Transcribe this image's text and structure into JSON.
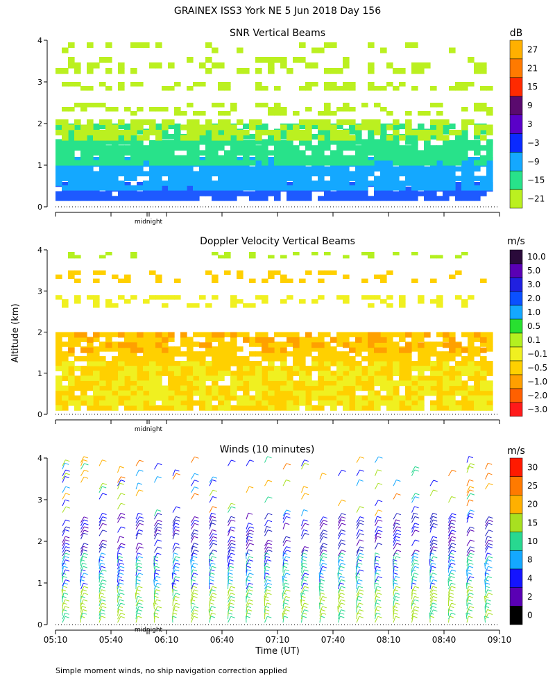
{
  "figure": {
    "title": "GRAINEX ISS3 York NE    5 Jun 2018 Day 156",
    "ylabel": "Altitude (km)",
    "xlabel": "Time (UT)",
    "midnight_label": "midnight",
    "footnote": "Simple moment winds, no ship navigation correction applied"
  },
  "chart_data": [
    {
      "type": "heatmap",
      "title": "SNR Vertical Beams",
      "xlabel": "",
      "ylabel": "Altitude (km)",
      "x_start": "05:10",
      "x_end": "09:10",
      "ylim": [
        0,
        4
      ],
      "yticks": [
        0,
        1,
        2,
        3,
        4
      ],
      "colorbar_unit": "dB",
      "colorbar_labels": [
        "27",
        "21",
        "15",
        "9",
        "3",
        "−3",
        "−9",
        "−15",
        "−21"
      ],
      "colorbar_colors": [
        "#ffb000",
        "#ff7a00",
        "#ff2a00",
        "#5a0a6e",
        "#5a00c8",
        "#0a2aff",
        "#14a8ff",
        "#28e28a",
        "#bbf020"
      ],
      "bands": [
        {
          "alt": [
            0.15,
            0.6
          ],
          "color": "#1e5aff",
          "coverage": 0.9
        },
        {
          "alt": [
            0.4,
            1.2
          ],
          "color": "#14a8ff",
          "coverage": 0.9
        },
        {
          "alt": [
            1.0,
            1.6
          ],
          "color": "#28e28a",
          "coverage": 0.85
        },
        {
          "alt": [
            1.5,
            2.0
          ],
          "color": "#28e28a",
          "coverage": 0.75
        },
        {
          "alt": [
            1.6,
            2.1
          ],
          "color": "#bbf020",
          "coverage": 0.6
        },
        {
          "alt": [
            2.2,
            2.5
          ],
          "color": "#bbf020",
          "coverage": 0.35
        },
        {
          "alt": [
            2.8,
            3.0
          ],
          "color": "#bbf020",
          "coverage": 0.35
        },
        {
          "alt": [
            3.2,
            3.6
          ],
          "color": "#bbf020",
          "coverage": 0.25
        },
        {
          "alt": [
            3.7,
            3.95
          ],
          "color": "#bbf020",
          "coverage": 0.2
        }
      ]
    },
    {
      "type": "heatmap",
      "title": "Doppler Velocity Vertical Beams",
      "xlabel": "",
      "ylabel": "Altitude (km)",
      "x_start": "05:10",
      "x_end": "09:10",
      "ylim": [
        0,
        4
      ],
      "yticks": [
        0,
        1,
        2,
        3,
        4
      ],
      "colorbar_unit": "m/s",
      "colorbar_labels": [
        "10.0",
        "5.0",
        "3.0",
        "2.0",
        "1.0",
        "0.5",
        "0.1",
        "−0.1",
        "−0.5",
        "−1.0",
        "−2.0",
        "−3.0"
      ],
      "colorbar_colors": [
        "#2a0a3a",
        "#5a00b4",
        "#2020e0",
        "#0a50ff",
        "#14a8ff",
        "#28e030",
        "#b4f020",
        "#f0f020",
        "#ffd000",
        "#ffa000",
        "#ff6000",
        "#ff1a1a"
      ],
      "bands": [
        {
          "alt": [
            0.1,
            1.3
          ],
          "color": "#ffd000",
          "coverage": 0.85
        },
        {
          "alt": [
            0.1,
            1.3
          ],
          "color": "#f0f020",
          "coverage": 0.45
        },
        {
          "alt": [
            1.3,
            2.0
          ],
          "color": "#ffd000",
          "coverage": 0.75
        },
        {
          "alt": [
            1.5,
            2.0
          ],
          "color": "#ffa000",
          "coverage": 0.3
        },
        {
          "alt": [
            2.6,
            2.9
          ],
          "color": "#f0f020",
          "coverage": 0.3
        },
        {
          "alt": [
            3.2,
            3.5
          ],
          "color": "#ffd000",
          "coverage": 0.25
        },
        {
          "alt": [
            3.8,
            3.95
          ],
          "color": "#b4f020",
          "coverage": 0.15
        }
      ]
    },
    {
      "type": "wind_barbs",
      "title": "Winds (10 minutes)",
      "xlabel": "Time (UT)",
      "ylabel": "Altitude (km)",
      "xticks": [
        "05:10",
        "05:40",
        "06:10",
        "06:40",
        "07:10",
        "07:40",
        "08:10",
        "08:40",
        "09:10"
      ],
      "ylim": [
        0,
        4
      ],
      "yticks": [
        0,
        1,
        2,
        3,
        4
      ],
      "colorbar_unit": "m/s",
      "colorbar_labels": [
        "30",
        "25",
        "20",
        "15",
        "10",
        "8",
        "4",
        "2",
        "0"
      ],
      "colorbar_colors": [
        "#ff1a00",
        "#ff7a00",
        "#ffb000",
        "#a8e020",
        "#28d890",
        "#14a8ff",
        "#1414ff",
        "#5a00b4",
        "#000000"
      ],
      "speed_by_altitude": [
        {
          "alt_max": 0.8,
          "speed": "15-20"
        },
        {
          "alt_max": 1.6,
          "speed": "10-15"
        },
        {
          "alt_max": 2.6,
          "speed": "4-8"
        },
        {
          "alt_max": 4.0,
          "speed": "8-25"
        }
      ]
    }
  ]
}
